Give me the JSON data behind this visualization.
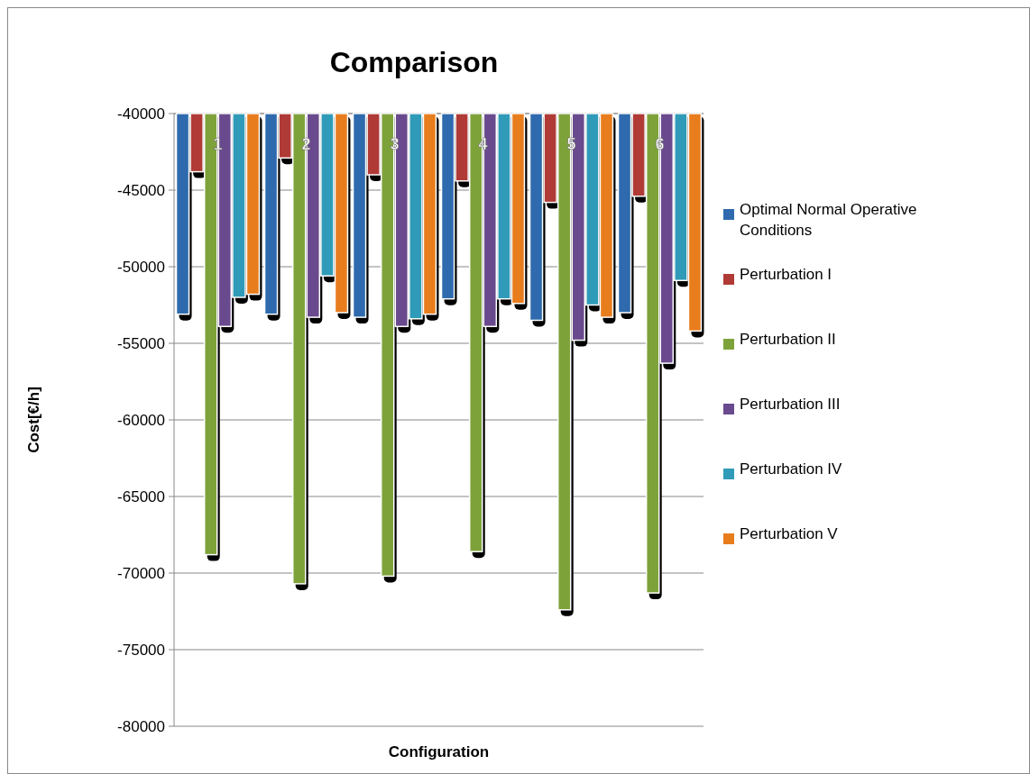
{
  "chart_data": {
    "type": "bar",
    "title": "Comparison",
    "xlabel": "Configuration",
    "ylabel": "Cost[€/h]",
    "categories": [
      "1",
      "2",
      "3",
      "4",
      "5",
      "6"
    ],
    "series": [
      {
        "name": "Optimal Normal Operative Conditions",
        "color": "#2e6aad",
        "values": [
          -53100,
          -53100,
          -53300,
          -52100,
          -53500,
          -53000
        ]
      },
      {
        "name": "Perturbation I",
        "color": "#b03a36",
        "values": [
          -43800,
          -42900,
          -44000,
          -44400,
          -45800,
          -45400
        ]
      },
      {
        "name": "Perturbation II",
        "color": "#7ea23a",
        "values": [
          -68800,
          -70700,
          -70200,
          -68600,
          -72400,
          -71300
        ]
      },
      {
        "name": "Perturbation III",
        "color": "#6a4a8e",
        "values": [
          -53900,
          -53300,
          -53900,
          -53900,
          -54800,
          -56300
        ]
      },
      {
        "name": "Perturbation IV",
        "color": "#2f9bb8",
        "values": [
          -52000,
          -50600,
          -53400,
          -52100,
          -52500,
          -50900
        ]
      },
      {
        "name": "Perturbation V",
        "color": "#e87d1e",
        "values": [
          -51800,
          -53000,
          -53100,
          -52400,
          -53300,
          -54200
        ]
      }
    ],
    "ylim": [
      -80000,
      -40000
    ],
    "yticks": [
      -80000,
      -75000,
      -70000,
      -65000,
      -60000,
      -55000,
      -50000,
      -45000,
      -40000
    ],
    "grid": "y",
    "legend": "right"
  }
}
